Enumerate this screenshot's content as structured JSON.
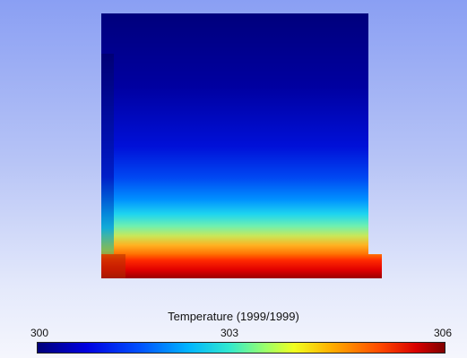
{
  "legend": {
    "title": "Temperature (1999/1999)",
    "min_label": "300",
    "mid_label": "303",
    "max_label": "306"
  },
  "colors": {
    "background_top": "#8a9ff3",
    "background_bottom": "#f5f6fd",
    "cold": "#00007a",
    "hot": "#800000"
  },
  "chart_data": {
    "type": "heatmap",
    "title": "Temperature (1999/1999)",
    "colorbar_range": [
      300,
      306
    ],
    "colorbar_ticks": [
      300,
      303,
      306
    ]
  }
}
